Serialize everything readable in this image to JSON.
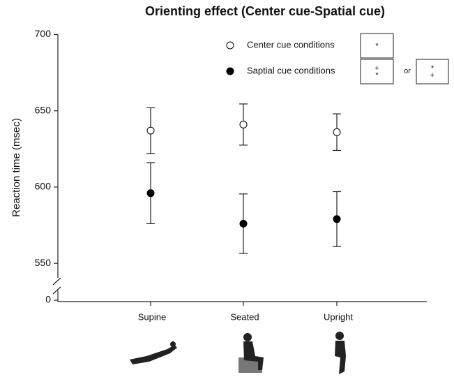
{
  "chart_data": {
    "type": "errorbar",
    "title": "Orienting effect (Center cue-Spatial cue)",
    "y_label": "Reaction time (msec)",
    "categories": [
      "Supine",
      "Seated",
      "Upright"
    ],
    "series": [
      {
        "name": "Center cue conditions",
        "color": "#ffffff",
        "values": [
          637,
          641,
          636
        ],
        "errors": [
          15,
          13.5,
          12
        ],
        "symbols": [
          [
            "*"
          ]
        ]
      },
      {
        "name": "Saptial cue conditions",
        "color": "#000000",
        "values": [
          596,
          576,
          579
        ],
        "errors": [
          20,
          19.5,
          18
        ],
        "symbols": [
          [
            "+",
            "*"
          ],
          [
            "*",
            "+"
          ]
        ]
      }
    ],
    "legend_or": "or",
    "ylim": [
      540,
      700
    ],
    "yticks": [
      0,
      550,
      600,
      650,
      700
    ],
    "axis_break": true,
    "grid": false
  }
}
